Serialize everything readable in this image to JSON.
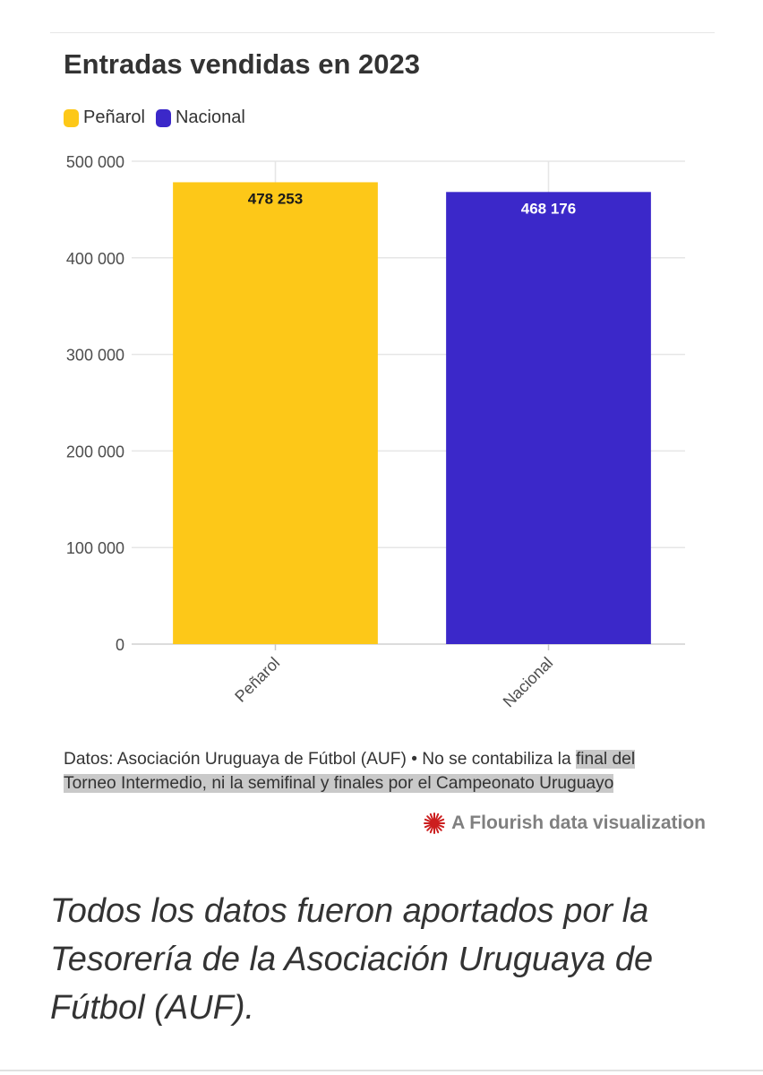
{
  "chart_data": {
    "type": "bar",
    "title": "Entradas vendidas en 2023",
    "categories": [
      "Peñarol",
      "Nacional"
    ],
    "values": [
      478253,
      468176
    ],
    "value_labels": [
      "478 253",
      "468 176"
    ],
    "colors": [
      "#fdc818",
      "#3b28c9"
    ],
    "label_colors": [
      "#1a1a1a",
      "#ffffff"
    ],
    "legend": [
      {
        "label": "Peñarol",
        "color": "#fdc818"
      },
      {
        "label": "Nacional",
        "color": "#3b28c9"
      }
    ],
    "legend_position": "top-left",
    "ylim": [
      0,
      500000
    ],
    "yticks": [
      0,
      100000,
      200000,
      300000,
      400000,
      500000
    ],
    "ytick_labels": [
      "0",
      "100 000",
      "200 000",
      "300 000",
      "400 000",
      "500 000"
    ],
    "grid": true,
    "xlabel": "",
    "ylabel": ""
  },
  "footnote": {
    "plain": "Datos: Asociación Uruguaya de Fútbol (AUF) • No se contabiliza la ",
    "highlighted": "final del Torneo Intermedio, ni la semifinal y finales por el Campeonato Uruguayo"
  },
  "credit": {
    "text": "A Flourish data visualization",
    "icon": "flourish-burst-icon",
    "icon_color": "#cc1f1f"
  },
  "caption": "Todos los datos fueron aportados por la Tesorería de la Asociación Uruguaya de Fútbol (AUF)."
}
